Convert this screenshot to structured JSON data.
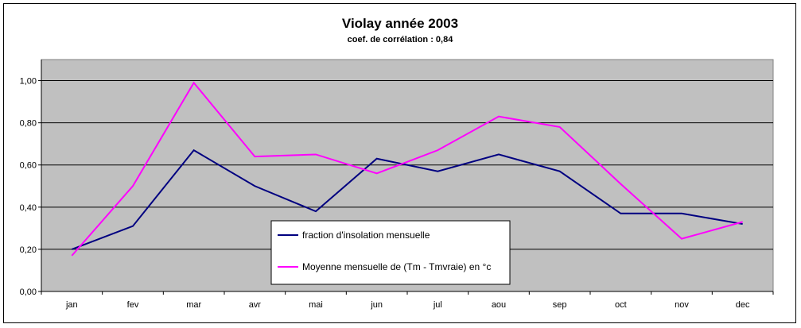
{
  "chart_data": {
    "type": "line",
    "title": "Violay année 2003",
    "subtitle": "coef. de corrélation : 0,84",
    "categories": [
      "jan",
      "fev",
      "mar",
      "avr",
      "mai",
      "jun",
      "jul",
      "aou",
      "sep",
      "oct",
      "nov",
      "dec"
    ],
    "y_ticks": [
      "0,00",
      "0,20",
      "0,40",
      "0,60",
      "0,80",
      "1,00"
    ],
    "ylim": [
      0,
      1.1
    ],
    "grid": true,
    "plot_background": "#c0c0c0",
    "legend_position": "center-bottom",
    "series": [
      {
        "name": "fraction d'insolation mensuelle",
        "color": "#000080",
        "values": [
          0.2,
          0.31,
          0.67,
          0.5,
          0.38,
          0.63,
          0.57,
          0.65,
          0.57,
          0.37,
          0.37,
          0.32
        ]
      },
      {
        "name": "Moyenne mensuelle de (Tm - Tmvraie) en °c",
        "color": "#ff00ff",
        "values": [
          0.17,
          0.5,
          0.99,
          0.64,
          0.65,
          0.56,
          0.67,
          0.83,
          0.78,
          0.51,
          0.25,
          0.33
        ]
      }
    ]
  }
}
